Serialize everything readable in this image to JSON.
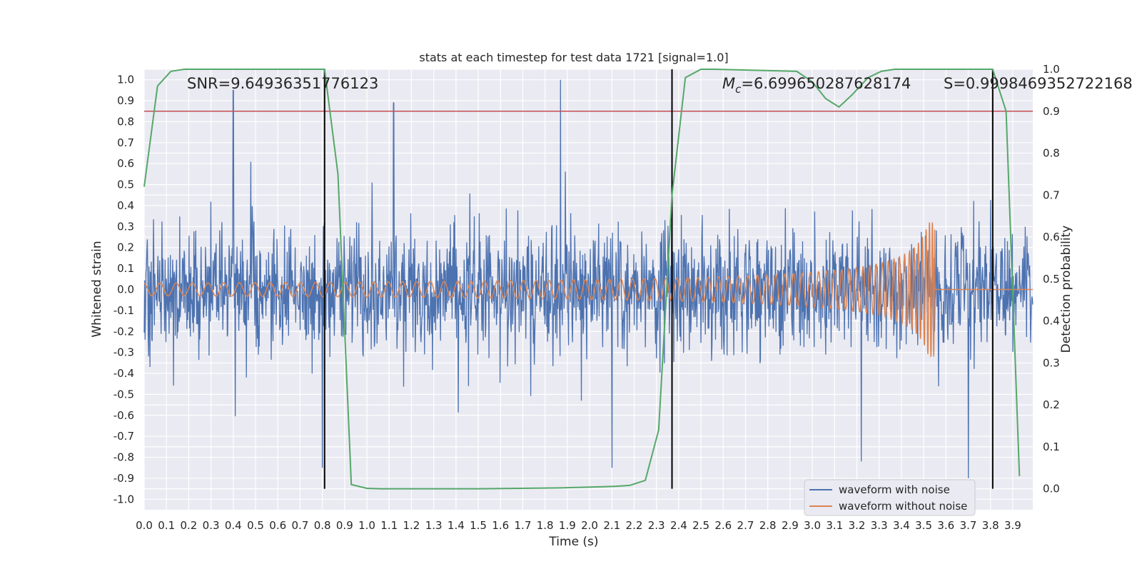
{
  "chart_data": {
    "type": "line",
    "title": "stats at each timestep for test data 1721 [signal=1.0]",
    "xlabel": "Time (s)",
    "ylabel": "Whitened strain",
    "y2label": "Detection probability",
    "xlim": [
      0.0,
      3.99
    ],
    "ylim": [
      -1.05,
      1.05
    ],
    "y2lim": [
      -0.05,
      1.0
    ],
    "x_ticks": [
      "0.0",
      "0.1",
      "0.2",
      "0.3",
      "0.4",
      "0.5",
      "0.6",
      "0.7",
      "0.8",
      "0.9",
      "1.0",
      "1.1",
      "1.2",
      "1.3",
      "1.4",
      "1.5",
      "1.6",
      "1.7",
      "1.8",
      "1.9",
      "2.0",
      "2.1",
      "2.2",
      "2.3",
      "2.4",
      "2.5",
      "2.6",
      "2.7",
      "2.8",
      "2.9",
      "3.0",
      "3.1",
      "3.2",
      "3.3",
      "3.4",
      "3.5",
      "3.6",
      "3.7",
      "3.8",
      "3.9"
    ],
    "y_ticks": [
      "1.0",
      "0.9",
      "0.8",
      "0.7",
      "0.6",
      "0.5",
      "0.4",
      "0.3",
      "0.2",
      "0.1",
      "0.0",
      "-0.1",
      "-0.2",
      "-0.3",
      "-0.4",
      "-0.5",
      "-0.6",
      "-0.7",
      "-0.8",
      "-0.9",
      "-1.0"
    ],
    "y2_ticks": [
      "1.0",
      "0.9",
      "0.8",
      "0.7",
      "0.6",
      "0.5",
      "0.4",
      "0.3",
      "0.2",
      "0.1",
      "0.0"
    ],
    "grid": true,
    "legend_position": "bottom-right",
    "legend": [
      "waveform with noise",
      "waveform without noise"
    ],
    "annotations": {
      "snr": "SNR=9.64936351776123",
      "mc_symbol": "M",
      "mc_sub": "c",
      "mc_value": "=6.699650287628174",
      "s": "S=0.9998469352722168"
    },
    "series": [
      {
        "name": "waveform with noise",
        "color": "#4c72b0",
        "kind": "noise",
        "x_range": [
          0.0,
          3.99
        ],
        "amplitude_range": [
          -0.9,
          1.0
        ],
        "peaks": [
          [
            0.4,
            0.95
          ],
          [
            1.12,
            0.89
          ],
          [
            1.87,
            1.0
          ],
          [
            3.7,
            -0.93
          ],
          [
            2.1,
            -0.85
          ],
          [
            0.8,
            -0.85
          ],
          [
            3.22,
            -0.82
          ]
        ]
      },
      {
        "name": "waveform without noise",
        "color": "#dd8452",
        "kind": "chirp",
        "start": 0.0,
        "merger": 3.55,
        "amplitude_start": 0.03,
        "amplitude_peak": 0.32
      },
      {
        "name": "detection probability",
        "color": "#55a868",
        "axis": "right",
        "x": [
          0.0,
          0.06,
          0.12,
          0.18,
          0.25,
          0.81,
          0.87,
          0.93,
          1.0,
          1.06,
          1.12,
          1.5,
          1.87,
          2.0,
          2.06,
          2.12,
          2.18,
          2.25,
          2.31,
          2.37,
          2.43,
          2.5,
          2.56,
          2.93,
          3.0,
          3.06,
          3.12,
          3.18,
          3.25,
          3.31,
          3.37,
          3.43,
          3.81,
          3.87,
          3.93
        ],
        "y": [
          0.72,
          0.96,
          0.995,
          1.0,
          1.0,
          1.0,
          0.75,
          0.01,
          0.001,
          0.0,
          0.0,
          0.0,
          0.002,
          0.004,
          0.005,
          0.006,
          0.008,
          0.02,
          0.14,
          0.7,
          0.98,
          1.0,
          1.0,
          0.995,
          0.97,
          0.93,
          0.91,
          0.94,
          0.98,
          0.995,
          1.0,
          1.0,
          1.0,
          0.9,
          0.03
        ]
      }
    ],
    "vlines": [
      0.81,
      2.37,
      3.81
    ],
    "threshold": {
      "value": 0.9,
      "axis": "right",
      "color": "#c44e52"
    }
  }
}
